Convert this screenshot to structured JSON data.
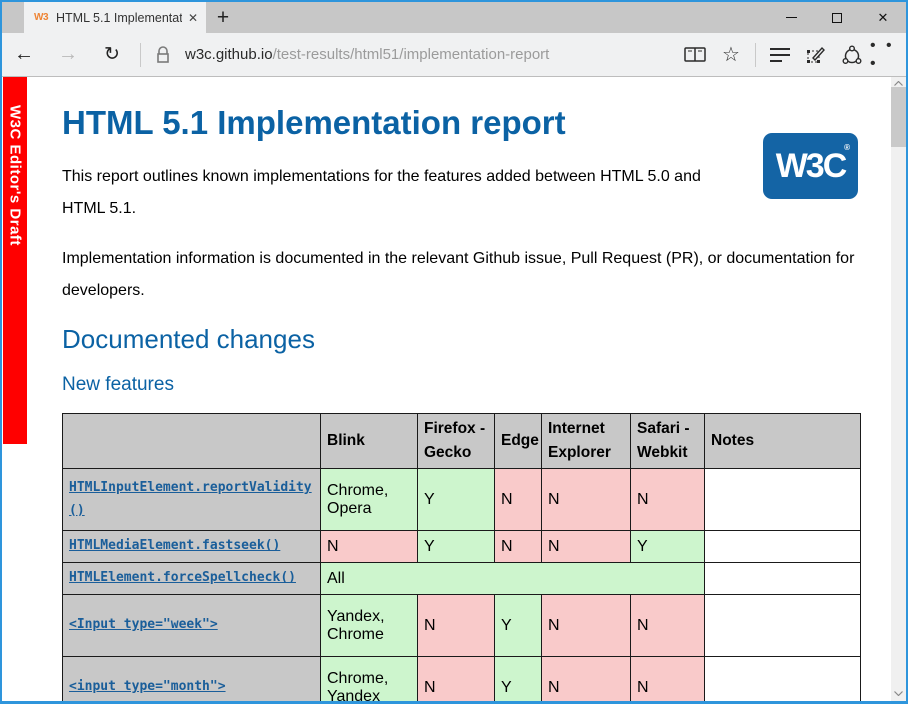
{
  "colors": {
    "accent_window_border": "#2e95dc",
    "banner_red": "#ff0000",
    "heading_blue": "#0b62a4",
    "link_blue": "#1a5e9a",
    "logo_blue": "#1464a5",
    "pass_green": "#cdf5cd",
    "fail_pink": "#f9caca",
    "header_gray": "#c8c8c8"
  },
  "titlebar": {
    "tab": {
      "favicon": "W3",
      "title": "HTML 5.1 Implementati",
      "close_glyph": "✕"
    },
    "new_tab_glyph": "+",
    "controls": {
      "minimize": "minimize",
      "maximize": "maximize",
      "close_glyph": "✕"
    }
  },
  "toolbar": {
    "back_glyph": "←",
    "forward_glyph": "→",
    "refresh_glyph": "↻",
    "url": {
      "domain": "w3c.github.io",
      "path": "/test-results/html51/implementation-report"
    },
    "star_glyph": "☆",
    "more_glyph": "• • •"
  },
  "banner": {
    "text": "W3C Editor's Draft"
  },
  "page": {
    "h1": "HTML 5.1 Implementation report",
    "logo_text": "W3C",
    "logo_tm": "®",
    "p1": "This report outlines known implementations for the features added between HTML 5.0 and HTML 5.1.",
    "p2": "Implementation information is documented in the relevant Github issue, Pull Request (PR), or documentation for developers.",
    "h2": "Documented changes",
    "h3": "New features",
    "table": {
      "headers": [
        "",
        "Blink",
        "Firefox - Gecko",
        "Edge",
        "Internet Explorer",
        "Safari - Webkit",
        "Notes"
      ],
      "rows": [
        {
          "feature": "HTMLInputElement.reportValidity\n()",
          "cells": [
            {
              "text": "Chrome, Opera",
              "status": "pass"
            },
            {
              "text": "Y",
              "status": "pass"
            },
            {
              "text": "N",
              "status": "fail"
            },
            {
              "text": "N",
              "status": "fail"
            },
            {
              "text": "N",
              "status": "fail"
            },
            {
              "text": "",
              "status": "empty"
            }
          ]
        },
        {
          "feature": "HTMLMediaElement.fastseek()",
          "cells": [
            {
              "text": "N",
              "status": "fail"
            },
            {
              "text": "Y",
              "status": "pass"
            },
            {
              "text": "N",
              "status": "fail"
            },
            {
              "text": "N",
              "status": "fail"
            },
            {
              "text": "Y",
              "status": "pass"
            },
            {
              "text": "",
              "status": "empty"
            }
          ]
        },
        {
          "feature": "HTMLElement.forceSpellcheck()",
          "cells": [
            {
              "text": "All",
              "status": "pass",
              "colspan": 5
            },
            {
              "text": "",
              "status": "empty"
            }
          ]
        },
        {
          "feature": "<Input type=\"week\">",
          "cells": [
            {
              "text": "Yandex, Chrome",
              "status": "pass"
            },
            {
              "text": "N",
              "status": "fail"
            },
            {
              "text": "Y",
              "status": "pass"
            },
            {
              "text": "N",
              "status": "fail"
            },
            {
              "text": "N",
              "status": "fail"
            },
            {
              "text": "",
              "status": "empty"
            }
          ]
        },
        {
          "feature": "<input type=\"month\">",
          "cells": [
            {
              "text": "Chrome, Yandex",
              "status": "pass"
            },
            {
              "text": "N",
              "status": "fail"
            },
            {
              "text": "Y",
              "status": "pass"
            },
            {
              "text": "N",
              "status": "fail"
            },
            {
              "text": "N",
              "status": "fail"
            },
            {
              "text": "",
              "status": "empty"
            }
          ]
        }
      ]
    }
  }
}
